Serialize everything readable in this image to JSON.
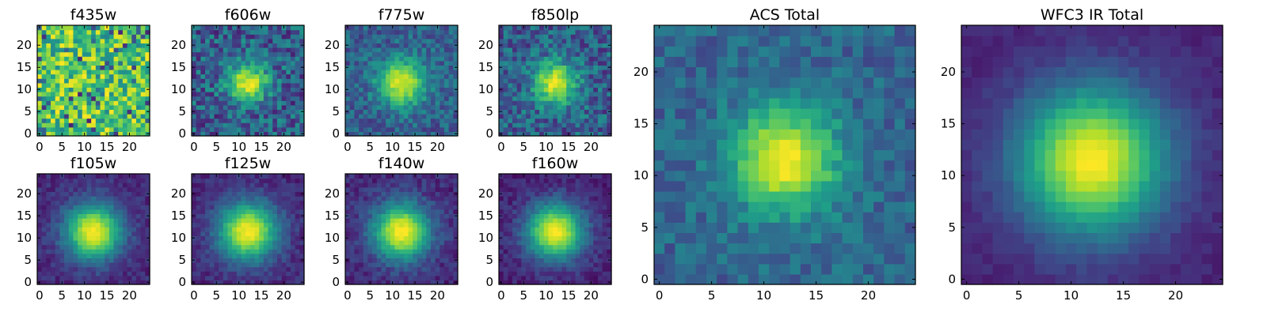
{
  "chart_data": [
    {
      "type": "heatmap",
      "title": "f435w",
      "profile": "noise",
      "seed": 11,
      "xlim": [
        0,
        24
      ],
      "ylim": [
        0,
        24
      ],
      "xticks": [
        "0",
        "5",
        "10",
        "15",
        "20"
      ],
      "yticks": [
        "0",
        "5",
        "10",
        "15",
        "20"
      ],
      "center": [
        12,
        11.5
      ]
    },
    {
      "type": "heatmap",
      "title": "f606w",
      "profile": "source",
      "peak": 0.95,
      "width": 3.2,
      "noise": 0.22,
      "background": 0.3,
      "seed": 22,
      "xlim": [
        0,
        24
      ],
      "ylim": [
        0,
        24
      ],
      "xticks": [
        "0",
        "5",
        "10",
        "15",
        "20"
      ],
      "yticks": [
        "0",
        "5",
        "10",
        "15",
        "20"
      ],
      "center": [
        12,
        11.5
      ]
    },
    {
      "type": "heatmap",
      "title": "f775w",
      "profile": "source",
      "peak": 0.95,
      "width": 3.8,
      "noise": 0.16,
      "background": 0.3,
      "seed": 33,
      "xlim": [
        0,
        24
      ],
      "ylim": [
        0,
        24
      ],
      "xticks": [
        "0",
        "5",
        "10",
        "15",
        "20"
      ],
      "yticks": [
        "0",
        "5",
        "10",
        "15",
        "20"
      ],
      "center": [
        12,
        11.5
      ]
    },
    {
      "type": "heatmap",
      "title": "f850lp",
      "profile": "source",
      "peak": 0.95,
      "width": 3.4,
      "noise": 0.2,
      "background": 0.3,
      "seed": 44,
      "xlim": [
        0,
        24
      ],
      "ylim": [
        0,
        24
      ],
      "xticks": [
        "0",
        "5",
        "10",
        "15",
        "20"
      ],
      "yticks": [
        "0",
        "5",
        "10",
        "15",
        "20"
      ],
      "center": [
        12,
        11.5
      ]
    },
    {
      "type": "heatmap",
      "title": "f105w",
      "profile": "source",
      "peak": 1.0,
      "width": 4.4,
      "noise": 0.08,
      "background": 0.12,
      "seed": 55,
      "xlim": [
        0,
        24
      ],
      "ylim": [
        0,
        24
      ],
      "xticks": [
        "0",
        "5",
        "10",
        "15",
        "20"
      ],
      "yticks": [
        "0",
        "5",
        "10",
        "15",
        "20"
      ],
      "center": [
        12,
        11.5
      ]
    },
    {
      "type": "heatmap",
      "title": "f125w",
      "profile": "source",
      "peak": 1.0,
      "width": 4.6,
      "noise": 0.08,
      "background": 0.12,
      "seed": 66,
      "xlim": [
        0,
        24
      ],
      "ylim": [
        0,
        24
      ],
      "xticks": [
        "0",
        "5",
        "10",
        "15",
        "20"
      ],
      "yticks": [
        "0",
        "5",
        "10",
        "15",
        "20"
      ],
      "center": [
        12,
        11.5
      ]
    },
    {
      "type": "heatmap",
      "title": "f140w",
      "profile": "source",
      "peak": 1.0,
      "width": 4.5,
      "noise": 0.09,
      "background": 0.12,
      "seed": 77,
      "xlim": [
        0,
        24
      ],
      "ylim": [
        0,
        24
      ],
      "xticks": [
        "0",
        "5",
        "10",
        "15",
        "20"
      ],
      "yticks": [
        "0",
        "5",
        "10",
        "15",
        "20"
      ],
      "center": [
        12,
        11.5
      ]
    },
    {
      "type": "heatmap",
      "title": "f160w",
      "profile": "source",
      "peak": 1.0,
      "width": 4.4,
      "noise": 0.08,
      "background": 0.1,
      "seed": 88,
      "xlim": [
        0,
        24
      ],
      "ylim": [
        0,
        24
      ],
      "xticks": [
        "0",
        "5",
        "10",
        "15",
        "20"
      ],
      "yticks": [
        "0",
        "5",
        "10",
        "15",
        "20"
      ],
      "center": [
        12,
        11.5
      ]
    },
    {
      "type": "heatmap",
      "title": "ACS Total",
      "profile": "source",
      "peak": 1.0,
      "width": 3.6,
      "noise": 0.12,
      "background": 0.33,
      "seed": 99,
      "xlim": [
        0,
        24
      ],
      "ylim": [
        0,
        24
      ],
      "xticks": [
        "0",
        "5",
        "10",
        "15",
        "20"
      ],
      "yticks": [
        "0",
        "5",
        "10",
        "15",
        "20"
      ],
      "center": [
        12,
        11.5
      ]
    },
    {
      "type": "heatmap",
      "title": "WFC3 IR Total",
      "profile": "source",
      "peak": 1.0,
      "width": 5.0,
      "noise": 0.04,
      "background": 0.1,
      "seed": 123,
      "xlim": [
        0,
        24
      ],
      "ylim": [
        0,
        24
      ],
      "xticks": [
        "0",
        "5",
        "10",
        "15",
        "20"
      ],
      "yticks": [
        "0",
        "5",
        "10",
        "15",
        "20"
      ],
      "center": [
        12,
        11.5
      ]
    }
  ],
  "colormap": [
    "#440154",
    "#482878",
    "#3e4989",
    "#31688e",
    "#26828e",
    "#1f9e89",
    "#35b779",
    "#6ece58",
    "#b5de2b",
    "#fde725"
  ]
}
